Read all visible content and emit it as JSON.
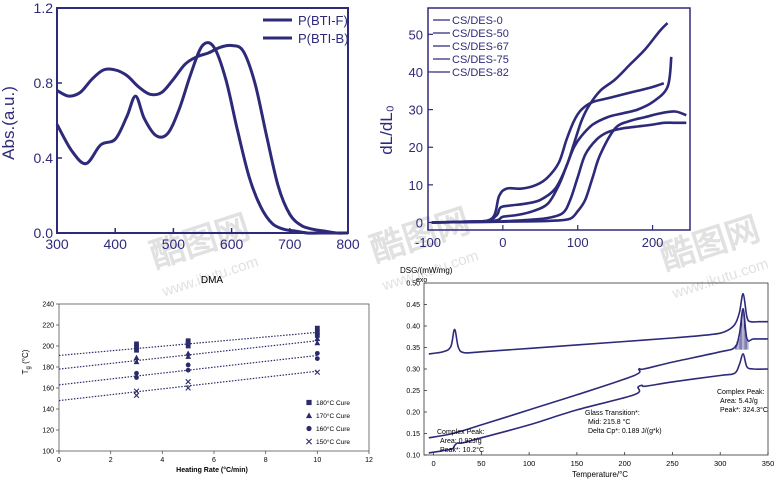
{
  "watermarks": [
    {
      "main": "酷图网",
      "sub": "www.ikutu.com"
    },
    {
      "main": "酷图网",
      "sub": "www.ikutu.com"
    },
    {
      "main": "酷图网",
      "sub": "www.ikutu.com"
    }
  ],
  "chart_data": [
    {
      "type": "line",
      "title": "",
      "xlabel": "",
      "ylabel": "Abs.(a.u.)",
      "xlim": [
        300,
        800
      ],
      "ylim": [
        0.0,
        1.2
      ],
      "xticks": [
        "300",
        "400",
        "500",
        "600",
        "700",
        "800"
      ],
      "yticks": [
        "0.0",
        "0.4",
        "0.8",
        "1.2"
      ],
      "legend_position": "top-right",
      "series": [
        {
          "name": "P(BTI-F)",
          "x": [
            300,
            325,
            350,
            375,
            400,
            420,
            435,
            450,
            470,
            490,
            510,
            530,
            550,
            570,
            590,
            610,
            630,
            650,
            670,
            690,
            710,
            730,
            750,
            770,
            800
          ],
          "y": [
            0.58,
            0.44,
            0.37,
            0.47,
            0.5,
            0.62,
            0.73,
            0.61,
            0.52,
            0.53,
            0.66,
            0.85,
            1.0,
            0.99,
            0.82,
            0.55,
            0.3,
            0.14,
            0.05,
            0.02,
            0.01,
            0.0,
            0.0,
            0.0,
            0.0
          ]
        },
        {
          "name": "P(BTI-B)",
          "x": [
            300,
            320,
            340,
            360,
            380,
            400,
            420,
            440,
            460,
            480,
            500,
            520,
            540,
            560,
            580,
            600,
            620,
            640,
            660,
            680,
            700,
            720,
            740,
            760,
            780,
            800
          ],
          "y": [
            0.76,
            0.73,
            0.75,
            0.82,
            0.87,
            0.87,
            0.84,
            0.78,
            0.74,
            0.75,
            0.82,
            0.9,
            0.94,
            0.96,
            0.99,
            1.0,
            0.97,
            0.8,
            0.52,
            0.25,
            0.1,
            0.04,
            0.02,
            0.01,
            0.0,
            0.0
          ]
        }
      ]
    },
    {
      "type": "line",
      "title": "",
      "xlabel": "",
      "ylabel": "dL/dL₀",
      "xlim": [
        -100,
        250
      ],
      "ylim": [
        -2,
        57
      ],
      "xticks": [
        "-100",
        "0",
        "100",
        "200"
      ],
      "yticks": [
        "0",
        "10",
        "20",
        "30",
        "40",
        "50"
      ],
      "legend_position": "top-left",
      "series": [
        {
          "name": "CS/DES-0",
          "x": [
            -95,
            -50,
            -20,
            -8,
            -3,
            10,
            30,
            50,
            70,
            85,
            95,
            105,
            115,
            130,
            150,
            170,
            190,
            210,
            220
          ],
          "y": [
            0,
            0.2,
            0.5,
            2,
            4,
            4.5,
            5,
            6,
            9,
            15,
            21,
            27,
            31,
            35,
            38,
            42,
            46,
            51,
            53
          ]
        },
        {
          "name": "CS/DES-50",
          "x": [
            -95,
            -50,
            -15,
            -5,
            5,
            25,
            45,
            60,
            75,
            85,
            95,
            105,
            120,
            140,
            160,
            180,
            200,
            215
          ],
          "y": [
            0,
            0.2,
            1,
            7,
            9,
            9,
            10,
            12,
            16,
            22,
            27,
            30,
            32,
            33,
            34,
            35,
            36,
            37
          ]
        },
        {
          "name": "CS/DES-67",
          "x": [
            -95,
            -50,
            -10,
            0,
            20,
            40,
            60,
            75,
            85,
            95,
            105,
            120,
            140,
            160,
            180,
            200,
            220,
            225
          ],
          "y": [
            0,
            0.2,
            0.5,
            1.5,
            2,
            3,
            5,
            10,
            15,
            20,
            23,
            26,
            28,
            29,
            30,
            32,
            36,
            44
          ]
        },
        {
          "name": "CS/DES-75",
          "x": [
            -95,
            -50,
            -10,
            0,
            20,
            40,
            60,
            80,
            90,
            100,
            110,
            125,
            140,
            160,
            180,
            200,
            215,
            230,
            245
          ],
          "y": [
            0,
            0.1,
            0.2,
            0.3,
            0.5,
            0.8,
            1.2,
            2.5,
            6,
            12,
            18,
            22,
            24,
            25,
            25.5,
            26,
            26.5,
            26.5,
            26.5
          ]
        },
        {
          "name": "CS/DES-82",
          "x": [
            -95,
            -50,
            0,
            40,
            70,
            90,
            100,
            110,
            120,
            130,
            150,
            170,
            190,
            210,
            230,
            245
          ],
          "y": [
            0,
            0.1,
            0.2,
            0.3,
            0.5,
            1,
            3,
            6,
            12,
            18,
            25,
            27,
            28,
            29,
            29.5,
            28.5
          ]
        }
      ]
    },
    {
      "type": "scatter",
      "title": "DMA",
      "xlabel": "Heating Rate (°C/min)",
      "ylabel": "T_g (°C)",
      "xlim": [
        0,
        12
      ],
      "ylim": [
        100,
        240
      ],
      "xticks": [
        "0",
        "2",
        "4",
        "6",
        "8",
        "10",
        "12"
      ],
      "yticks": [
        "100",
        "120",
        "140",
        "160",
        "180",
        "200",
        "220",
        "240"
      ],
      "legend_position": "bottom-right",
      "series": [
        {
          "name": "180°C Cure",
          "marker": "square",
          "x": [
            3,
            3,
            3,
            5,
            5,
            5,
            10,
            10,
            10
          ],
          "y": [
            196,
            199,
            202,
            200,
            203,
            205,
            210,
            213,
            217
          ],
          "fit": [
            0,
            191,
            10,
            213
          ]
        },
        {
          "name": "170°C Cure",
          "marker": "triangle",
          "x": [
            3,
            3,
            5,
            5,
            10,
            10
          ],
          "y": [
            185,
            189,
            190,
            193,
            203,
            207
          ],
          "fit": [
            0,
            178,
            10,
            205
          ]
        },
        {
          "name": "160°C Cure",
          "marker": "circle",
          "x": [
            3,
            3,
            5,
            5,
            10,
            10
          ],
          "y": [
            170,
            174,
            177,
            182,
            188,
            193
          ],
          "fit": [
            0,
            163,
            10,
            191
          ]
        },
        {
          "name": "150°C Cure",
          "marker": "cross",
          "x": [
            3,
            3,
            5,
            5,
            10
          ],
          "y": [
            153,
            157,
            160,
            166,
            175
          ],
          "fit": [
            0,
            148,
            10,
            176
          ]
        }
      ]
    },
    {
      "type": "line",
      "title": "",
      "xlabel": "Temperature/°C",
      "ylabel": "DSG/(mW/mg)",
      "ylabel_note": "exo",
      "xlim": [
        -10,
        350
      ],
      "ylim": [
        0.1,
        0.5
      ],
      "xticks": [
        "0",
        "50",
        "100",
        "150",
        "200",
        "250",
        "300",
        "350"
      ],
      "yticks": [
        "0.10",
        "0.15",
        "0.20",
        "0.25",
        "0.30",
        "0.35",
        "0.40",
        "0.45",
        "0.50"
      ],
      "series": [
        {
          "name": "",
          "x": [
            -5,
            10,
            18,
            22,
            26,
            32,
            50,
            100,
            150,
            200,
            250,
            290,
            305,
            315,
            320,
            324,
            328,
            332,
            340,
            350
          ],
          "y": [
            0.335,
            0.34,
            0.352,
            0.392,
            0.35,
            0.338,
            0.34,
            0.348,
            0.356,
            0.364,
            0.372,
            0.38,
            0.387,
            0.403,
            0.43,
            0.475,
            0.42,
            0.41,
            0.41,
            0.41
          ]
        },
        {
          "name": "",
          "x": [
            -5,
            20,
            50,
            100,
            150,
            210,
            215,
            220,
            250,
            300,
            315,
            320,
            324,
            328,
            335,
            350
          ],
          "y": [
            0.14,
            0.15,
            0.17,
            0.205,
            0.24,
            0.285,
            0.3,
            0.3,
            0.316,
            0.34,
            0.35,
            0.38,
            0.44,
            0.37,
            0.37,
            0.37
          ]
        },
        {
          "name": "",
          "x": [
            -5,
            10,
            20,
            22,
            25,
            30,
            50,
            100,
            150,
            210,
            214,
            218,
            222,
            250,
            300,
            315,
            320,
            324,
            328,
            335,
            350
          ],
          "y": [
            0.105,
            0.11,
            0.115,
            0.122,
            0.128,
            0.128,
            0.14,
            0.17,
            0.205,
            0.24,
            0.258,
            0.262,
            0.26,
            0.27,
            0.285,
            0.29,
            0.31,
            0.335,
            0.305,
            0.3,
            0.3
          ]
        }
      ],
      "annotations": [
        {
          "label": "Complex Peak:",
          "lines": [
            "Area:   0.92J/g",
            "Peak*: 10.2°C"
          ]
        },
        {
          "label": "Glass Transition*:",
          "lines": [
            "Mid:   215.8 °C",
            "Delta Cp*: 0.189 J/(g*k)"
          ]
        },
        {
          "label": "Complex Peak:",
          "lines": [
            "Area:   5.4J/g",
            "Peak*: 324.3°C"
          ]
        }
      ]
    }
  ],
  "colors": {
    "line": "#2e2a7a",
    "axis": "#000000",
    "dot": "#2b2b6b"
  }
}
